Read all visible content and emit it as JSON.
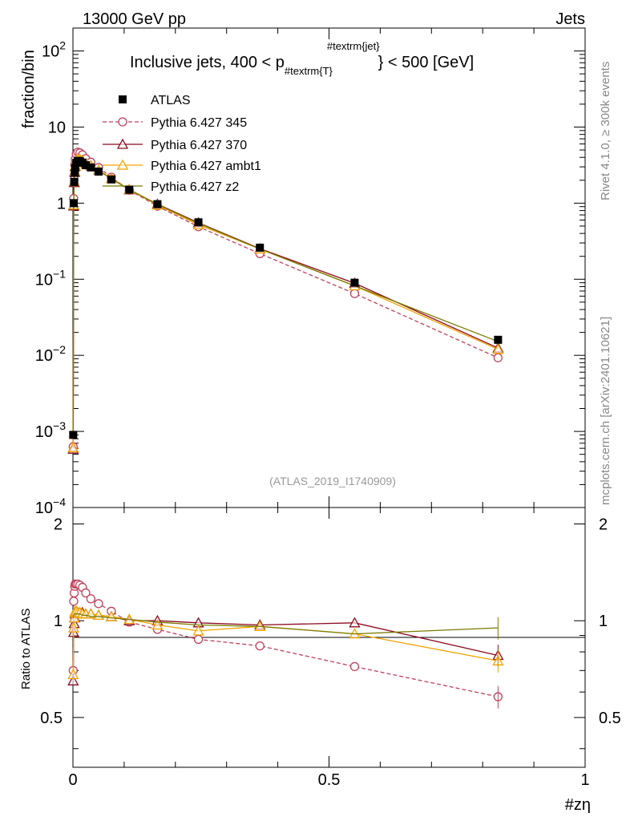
{
  "header": {
    "left": "13000 GeV pp",
    "right": "Jets"
  },
  "side_labels": {
    "rivet": "Rivet 4.1.0, ≥ 300k events",
    "source": "mcplots.cern.ch [arXiv:2401.10621]"
  },
  "chart_data": {
    "type": "line",
    "title": "Inclusive jets, 400 < p_{#textrm{T}}^{#textrm{jet}} < 500 [GeV]",
    "title_parts": {
      "pre": "Inclusive jets, 400 < p",
      "sub": "#textrm{T}",
      "sup": "#textrm{jet}",
      "post": "} < 500 [GeV]"
    },
    "analysis_id": "(ATLAS_2019_I1740909)",
    "xlabel": "#zη",
    "ylabel": "fraction/bin",
    "ratio_ylabel": "Ratio to ATLAS",
    "xlim": [
      0,
      1
    ],
    "ylim": [
      0.0001,
      200
    ],
    "yscale": "log",
    "ratio_ylim": [
      0.35,
      2.25
    ],
    "x_ticks": [
      "0",
      "0.5",
      "1"
    ],
    "y_tick_labels": [
      {
        "base": "10",
        "exp": "2"
      },
      {
        "base": "10",
        "exp": ""
      },
      {
        "base": "1",
        "exp": ""
      },
      {
        "base": "10",
        "exp": "−1"
      },
      {
        "base": "10",
        "exp": "−2"
      },
      {
        "base": "10",
        "exp": "−3"
      },
      {
        "base": "10",
        "exp": "−4"
      }
    ],
    "ratio_ticks": [
      "2",
      "1",
      "0.5"
    ],
    "x": [
      0.0005,
      0.0015,
      0.0025,
      0.0035,
      0.0045,
      0.0065,
      0.0095,
      0.0135,
      0.0185,
      0.025,
      0.035,
      0.05,
      0.075,
      0.11,
      0.165,
      0.245,
      0.365,
      0.55,
      0.83
    ],
    "atlas": [
      0.0009,
      1.0,
      1.9,
      2.5,
      2.9,
      3.4,
      3.6,
      3.55,
      3.4,
      3.15,
      2.95,
      2.6,
      2.05,
      1.5,
      0.97,
      0.56,
      0.26,
      0.09,
      0.016
    ],
    "legend": [
      "ATLAS",
      "Pythia 6.427 345",
      "Pythia 6.427 370",
      "Pythia 6.427 ambt1",
      "Pythia 6.427 z2"
    ],
    "series": [
      {
        "name": "Pythia 6.427 345",
        "color": "#c0405a",
        "dashed": true,
        "marker": "circle",
        "ratio": [
          0.7,
          1.15,
          1.22,
          1.28,
          1.3,
          1.3,
          1.3,
          1.29,
          1.27,
          1.22,
          1.17,
          1.13,
          1.07,
          0.99,
          0.94,
          0.875,
          0.835,
          0.72,
          0.58
        ]
      },
      {
        "name": "Pythia 6.427 370",
        "color": "#8b0a1f",
        "dashed": false,
        "marker": "triangle",
        "ratio": [
          0.65,
          0.92,
          0.98,
          1.02,
          1.05,
          1.06,
          1.06,
          1.06,
          1.06,
          1.05,
          1.05,
          1.04,
          1.03,
          1.0,
          1.0,
          0.985,
          0.97,
          0.985,
          0.78
        ]
      },
      {
        "name": "Pythia 6.427 ambt1",
        "color": "#f2a400",
        "dashed": false,
        "marker": "triangle",
        "ratio": [
          0.68,
          0.95,
          1.02,
          1.06,
          1.07,
          1.07,
          1.06,
          1.06,
          1.05,
          1.05,
          1.05,
          1.04,
          1.03,
          1.01,
          0.97,
          0.93,
          0.96,
          0.91,
          0.75
        ]
      },
      {
        "name": "Pythia 6.427 z2",
        "color": "#7a7a00",
        "dashed": false,
        "marker": "none",
        "ratio": [
          1.02,
          1.04,
          1.05,
          1.05,
          1.05,
          1.05,
          1.05,
          1.05,
          1.04,
          1.04,
          1.03,
          1.03,
          1.02,
          1.01,
          0.99,
          0.97,
          0.96,
          0.91,
          0.95
        ]
      }
    ]
  }
}
